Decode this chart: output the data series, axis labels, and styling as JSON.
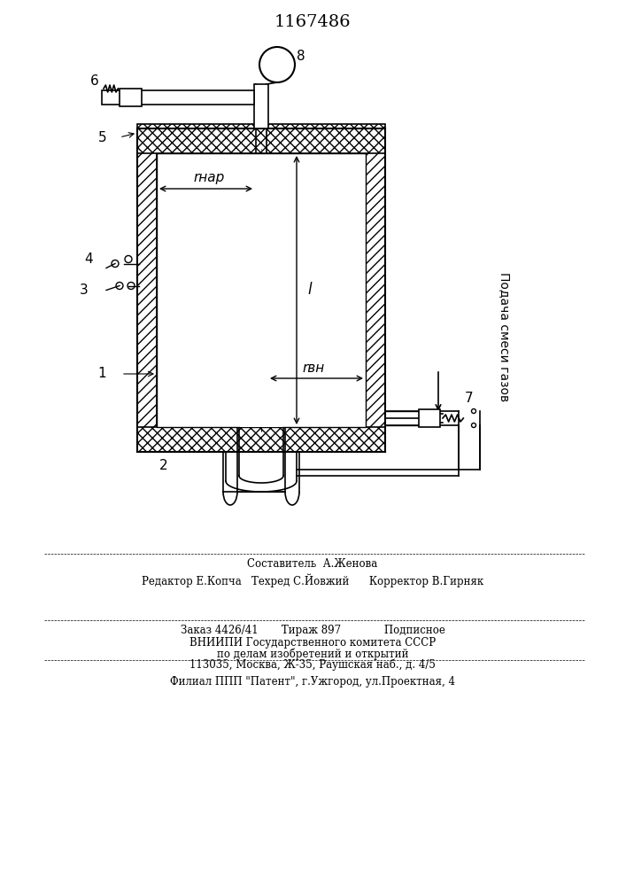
{
  "title": "1167486",
  "bg_color": "#ffffff",
  "line_color": "#000000",
  "hatch_color": "#000000",
  "label_1": "1",
  "label_2": "2",
  "label_3": "3",
  "label_4": "4",
  "label_5": "5",
  "label_6": "6",
  "label_7": "7",
  "label_8": "8",
  "label_r_nar": "rнар",
  "label_r_vn": "rвн",
  "label_l": "l",
  "label_podacha": "Подача смеси газов",
  "footer_line1": "Составитель  А.Женова",
  "footer_line2": "Редактор Е.Копча   Техред С.Йовжий      Корректор В.Гирняк",
  "footer_line3": "Заказ 4426/41       Тираж 897             Подписное",
  "footer_line4": "ВНИИПИ Государственного комитета СССР",
  "footer_line5": "по делам изобретений и открытий",
  "footer_line6": "113035, Москва, Ж-35, Раушская наб., д. 4/5",
  "footer_line7": "Филиал ППП \"Патент\", г.Ужгород, ул.Проектная, 4"
}
